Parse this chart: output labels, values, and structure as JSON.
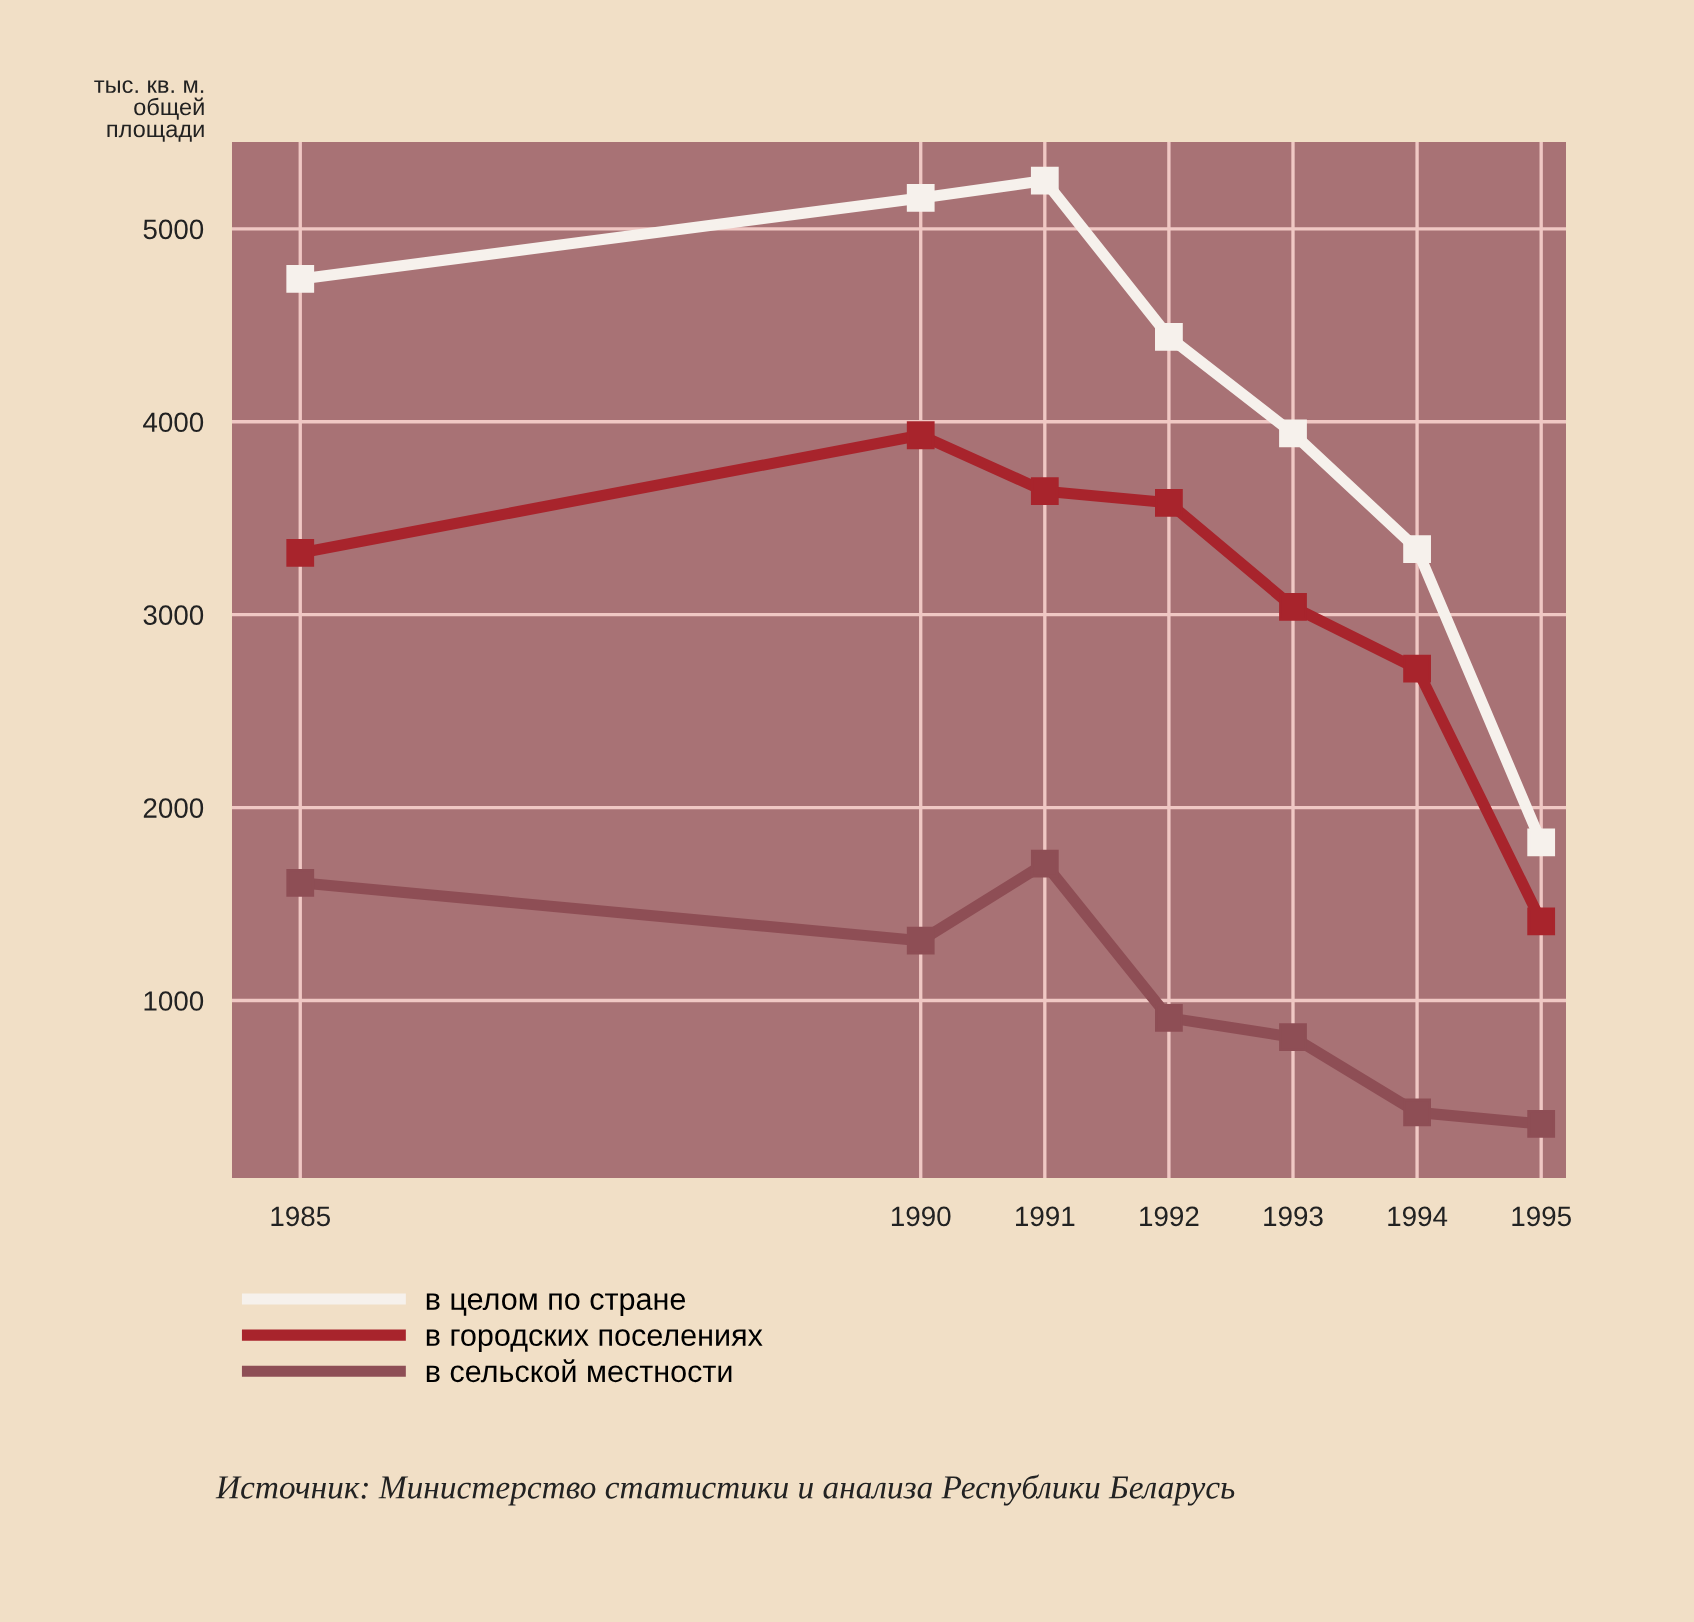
{
  "chart_data": {
    "type": "line",
    "ylabel": "тыс. кв. м.\nобщей\nплощади",
    "x": [
      1985,
      1990,
      1991,
      1992,
      1993,
      1994,
      1995
    ],
    "xlim": [
      1984.45,
      1995.2
    ],
    "xticks": [
      1985,
      1990,
      1991,
      1992,
      1993,
      1994,
      1995
    ],
    "ylim": [
      80,
      5450
    ],
    "yticks": [
      1000,
      2000,
      3000,
      4000,
      5000
    ],
    "series": [
      {
        "name": "в целом по стране",
        "color": "#f6f1ec",
        "values": [
          4740,
          5160,
          5250,
          4440,
          3940,
          3340,
          1820
        ]
      },
      {
        "name": "в городских поселениях",
        "color": "#a8242c",
        "values": [
          3320,
          3930,
          3640,
          3580,
          3040,
          2720,
          1410
        ]
      },
      {
        "name": "в сельской местности",
        "color": "#8e4e55",
        "values": [
          1610,
          1310,
          1710,
          910,
          810,
          420,
          360
        ]
      }
    ],
    "marker": "square",
    "line_style": "solid",
    "grid": true,
    "legend": "bottom",
    "annotations": [
      "Источник: Министерство статистики и анализа Республики Беларусь"
    ]
  }
}
